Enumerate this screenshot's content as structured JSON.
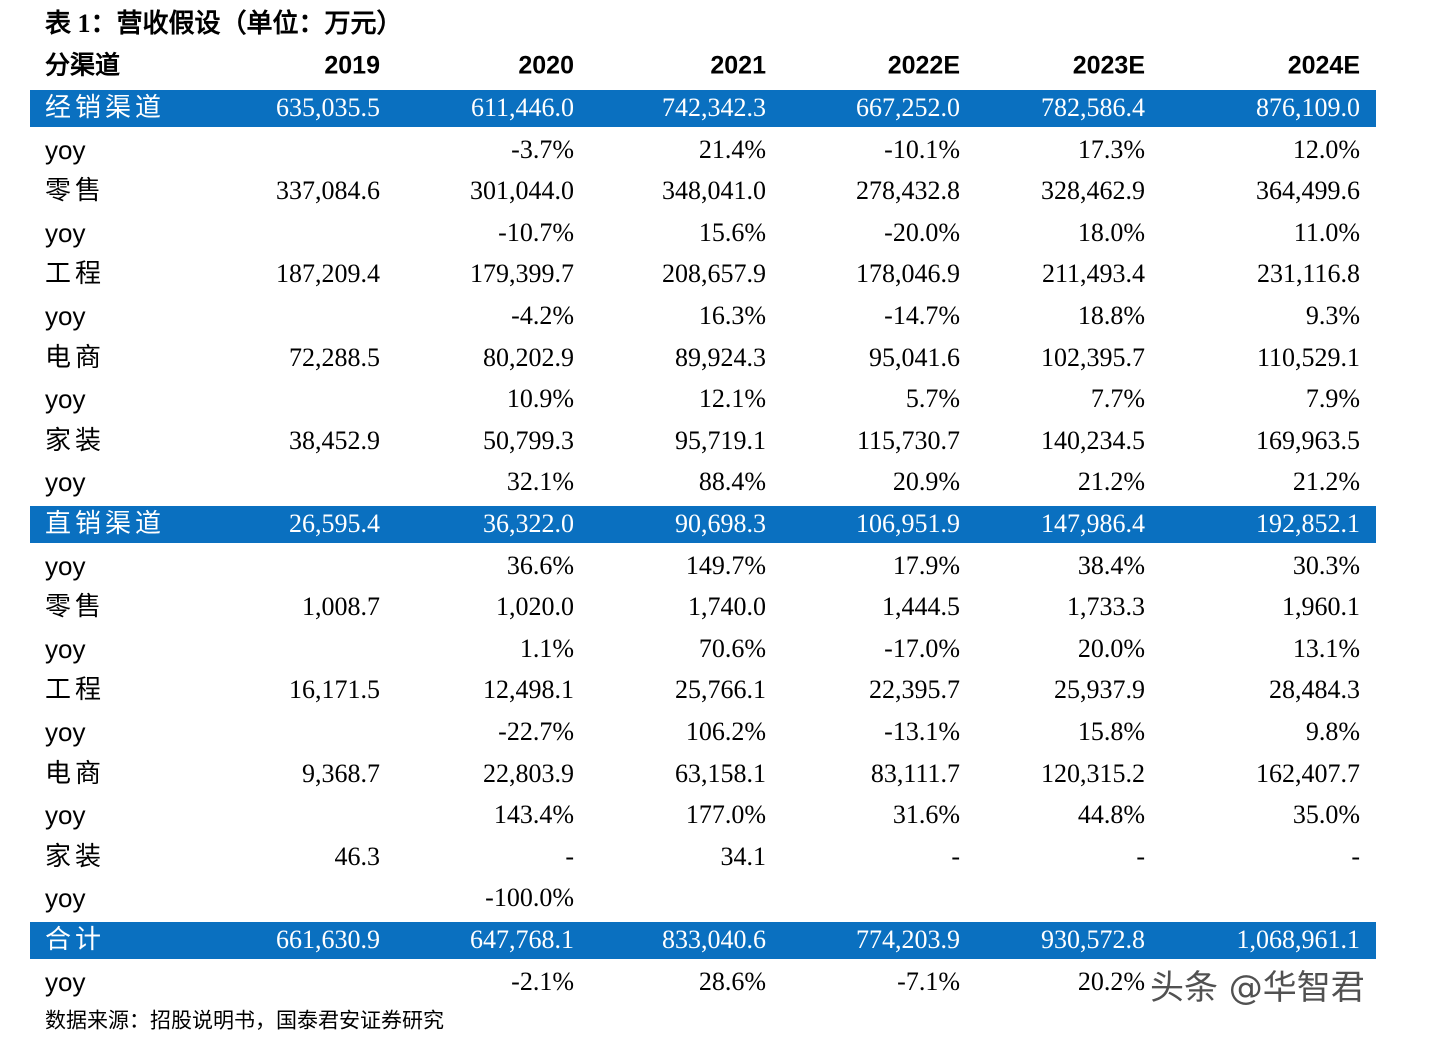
{
  "title": "表 1：营收假设（单位：万元）",
  "table": {
    "header": [
      "分渠道",
      "2019",
      "2020",
      "2021",
      "2022E",
      "2023E",
      "2024E"
    ],
    "rows": [
      [
        "经销渠道",
        "635,035.5",
        "611,446.0",
        "742,342.3",
        "667,252.0",
        "782,586.4",
        "876,109.0"
      ],
      [
        "yoy",
        null,
        "-3.7%",
        "21.4%",
        "-10.1%",
        "17.3%",
        "12.0%"
      ],
      [
        "零售",
        "337,084.6",
        "301,044.0",
        "348,041.0",
        "278,432.8",
        "328,462.9",
        "364,499.6"
      ],
      [
        "yoy",
        null,
        "-10.7%",
        "15.6%",
        "-20.0%",
        "18.0%",
        "11.0%"
      ],
      [
        "工程",
        "187,209.4",
        "179,399.7",
        "208,657.9",
        "178,046.9",
        "211,493.4",
        "231,116.8"
      ],
      [
        "yoy",
        null,
        "-4.2%",
        "16.3%",
        "-14.7%",
        "18.8%",
        "9.3%"
      ],
      [
        "电商",
        "72,288.5",
        "80,202.9",
        "89,924.3",
        "95,041.6",
        "102,395.7",
        "110,529.1"
      ],
      [
        "yoy",
        null,
        "10.9%",
        "12.1%",
        "5.7%",
        "7.7%",
        "7.9%"
      ],
      [
        "家装",
        "38,452.9",
        "50,799.3",
        "95,719.1",
        "115,730.7",
        "140,234.5",
        "169,963.5"
      ],
      [
        "yoy",
        null,
        "32.1%",
        "88.4%",
        "20.9%",
        "21.2%",
        "21.2%"
      ],
      [
        "直销渠道",
        "26,595.4",
        "36,322.0",
        "90,698.3",
        "106,951.9",
        "147,986.4",
        "192,852.1"
      ],
      [
        "yoy",
        null,
        "36.6%",
        "149.7%",
        "17.9%",
        "38.4%",
        "30.3%"
      ],
      [
        "零售",
        "1,008.7",
        "1,020.0",
        "1,740.0",
        "1,444.5",
        "1,733.3",
        "1,960.1"
      ],
      [
        "yoy",
        null,
        "1.1%",
        "70.6%",
        "-17.0%",
        "20.0%",
        "13.1%"
      ],
      [
        "工程",
        "16,171.5",
        "12,498.1",
        "25,766.1",
        "22,395.7",
        "25,937.9",
        "28,484.3"
      ],
      [
        "yoy",
        null,
        "-22.7%",
        "106.2%",
        "-13.1%",
        "15.8%",
        "9.8%"
      ],
      [
        "电商",
        "9,368.7",
        "22,803.9",
        "63,158.1",
        "83,111.7",
        "120,315.2",
        "162,407.7"
      ],
      [
        "yoy",
        null,
        "143.4%",
        "177.0%",
        "31.6%",
        "44.8%",
        "35.0%"
      ],
      [
        "家装",
        "46.3",
        "-",
        "34.1",
        "-",
        "-",
        "-"
      ],
      [
        "yoy",
        null,
        "-100.0%",
        null,
        null,
        null,
        null
      ],
      [
        "合计",
        "661,630.9",
        "647,768.1",
        "833,040.6",
        "774,203.9",
        "930,572.8",
        "1,068,961.1"
      ],
      [
        "yoy",
        null,
        "-2.1%",
        "28.6%",
        "-7.1%",
        "20.2%",
        null
      ]
    ],
    "highlight_rows": [
      0,
      10,
      20
    ]
  },
  "source": "数据来源：招股说明书，国泰君安证券研究",
  "watermark": "头条 @华智君"
}
